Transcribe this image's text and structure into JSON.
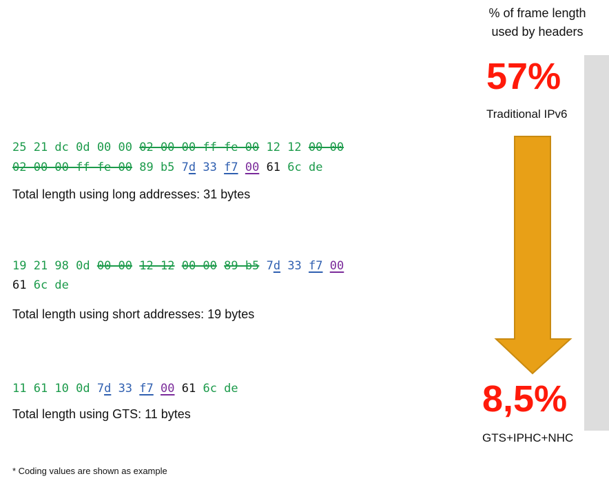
{
  "rows": [
    {
      "lines": [
        [
          {
            "t": "25 21 dc 0d 00 00 ",
            "c": "g"
          },
          {
            "t": "02 00 00 ff fe 00",
            "c": "g",
            "s": "strike"
          },
          {
            "t": " 12 12 ",
            "c": "g"
          },
          {
            "t": "00 00",
            "c": "g",
            "s": "strike"
          }
        ],
        [
          {
            "t": "02 00 00 ff fe 00",
            "c": "g",
            "s": "strike"
          },
          {
            "t": " 89 b5 ",
            "c": "g"
          },
          {
            "t": "7",
            "c": "b"
          },
          {
            "t": "d",
            "c": "b",
            "s": "ul"
          },
          {
            "t": " 33 ",
            "c": "b"
          },
          {
            "t": "f7",
            "c": "b",
            "s": "ul"
          },
          {
            "t": " ",
            "c": "k"
          },
          {
            "t": "00",
            "c": "p",
            "s": "ul"
          },
          {
            "t": " 61 ",
            "c": "k"
          },
          {
            "t": "6c de",
            "c": "g"
          }
        ]
      ],
      "caption": "Total length using long addresses: 31 bytes"
    },
    {
      "lines": [
        [
          {
            "t": "19 21 98 0d ",
            "c": "g"
          },
          {
            "t": "00 00",
            "c": "g",
            "s": "strike"
          },
          {
            "t": " ",
            "c": "g"
          },
          {
            "t": "12 12",
            "c": "g",
            "s": "strike"
          },
          {
            "t": " ",
            "c": "g"
          },
          {
            "t": "00 00",
            "c": "g",
            "s": "strike"
          },
          {
            "t": " ",
            "c": "g"
          },
          {
            "t": "89 b5",
            "c": "g",
            "s": "strike"
          },
          {
            "t": " ",
            "c": "g"
          },
          {
            "t": "7",
            "c": "b"
          },
          {
            "t": "d",
            "c": "b",
            "s": "ul"
          },
          {
            "t": " 33 ",
            "c": "b"
          },
          {
            "t": "f7",
            "c": "b",
            "s": "ul"
          },
          {
            "t": " ",
            "c": "k"
          },
          {
            "t": "00",
            "c": "p",
            "s": "ul"
          }
        ],
        [
          {
            "t": "61 ",
            "c": "k"
          },
          {
            "t": "6c de",
            "c": "g"
          }
        ]
      ],
      "caption": "Total length using short addresses: 19 bytes"
    },
    {
      "lines": [
        [
          {
            "t": "11 61 10 0d ",
            "c": "g"
          },
          {
            "t": "7",
            "c": "b"
          },
          {
            "t": "d",
            "c": "b",
            "s": "ul"
          },
          {
            "t": " 33 ",
            "c": "b"
          },
          {
            "t": "f7",
            "c": "b",
            "s": "ul"
          },
          {
            "t": " ",
            "c": "k"
          },
          {
            "t": "00",
            "c": "p",
            "s": "ul"
          },
          {
            "t": " 61 ",
            "c": "k"
          },
          {
            "t": "6c de",
            "c": "g"
          }
        ]
      ],
      "caption": "Total length using GTS: 11 bytes"
    }
  ],
  "footnote": "* Coding values are shown as example",
  "side": {
    "title_line1": "% of frame length",
    "title_line2": "used by headers",
    "top_value": "57%",
    "top_label": "Traditional IPv6",
    "bottom_value": "8,5%",
    "bottom_label": "GTS+IPHC+NHC"
  },
  "colors": {
    "green": "#1b9a4a",
    "blue": "#2f5fb0",
    "purple": "#7a2a9a",
    "black": "#111111",
    "red": "#ff1a0a",
    "arrow": "#e8a017",
    "arrow_stroke": "#c98a10",
    "bar": "#dddddd"
  },
  "icons": {
    "arrow": "down-arrow-icon"
  }
}
